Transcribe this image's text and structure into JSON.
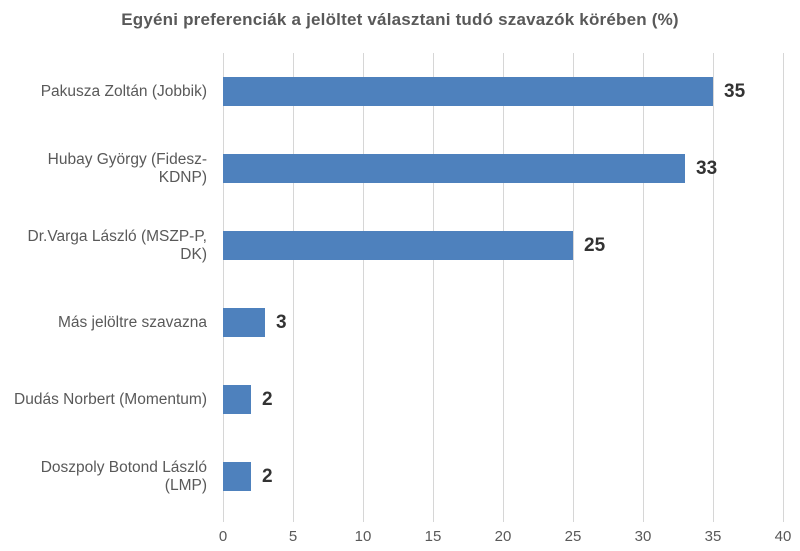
{
  "chart_data": {
    "type": "bar",
    "orientation": "horizontal",
    "title": "Egyéni preferenciák a jelöltet választani tudó szavazók körében (%)",
    "categories": [
      "Pakusza Zoltán (Jobbik)",
      "Hubay György (Fidesz-KDNP)",
      "Dr.Varga László (MSZP-P, DK)",
      "Más jelöltre szavazna",
      "Dudás Norbert (Momentum)",
      "Doszpoly Botond László (LMP)"
    ],
    "values": [
      35,
      33,
      25,
      3,
      2,
      2
    ],
    "value_labels": [
      "35",
      "33",
      "25",
      "3",
      "2",
      "2"
    ],
    "xlim": [
      0,
      40
    ],
    "x_ticks": [
      0,
      5,
      10,
      15,
      20,
      25,
      30,
      35,
      40
    ],
    "grid": true,
    "legend": false,
    "xlabel": "",
    "ylabel": "",
    "colors": {
      "bar": "#4e81bd",
      "gridline": "#d6d6d6",
      "title_text": "#595959",
      "axis_text": "#595959",
      "value_text": "#333333",
      "background": "#ffffff"
    }
  }
}
